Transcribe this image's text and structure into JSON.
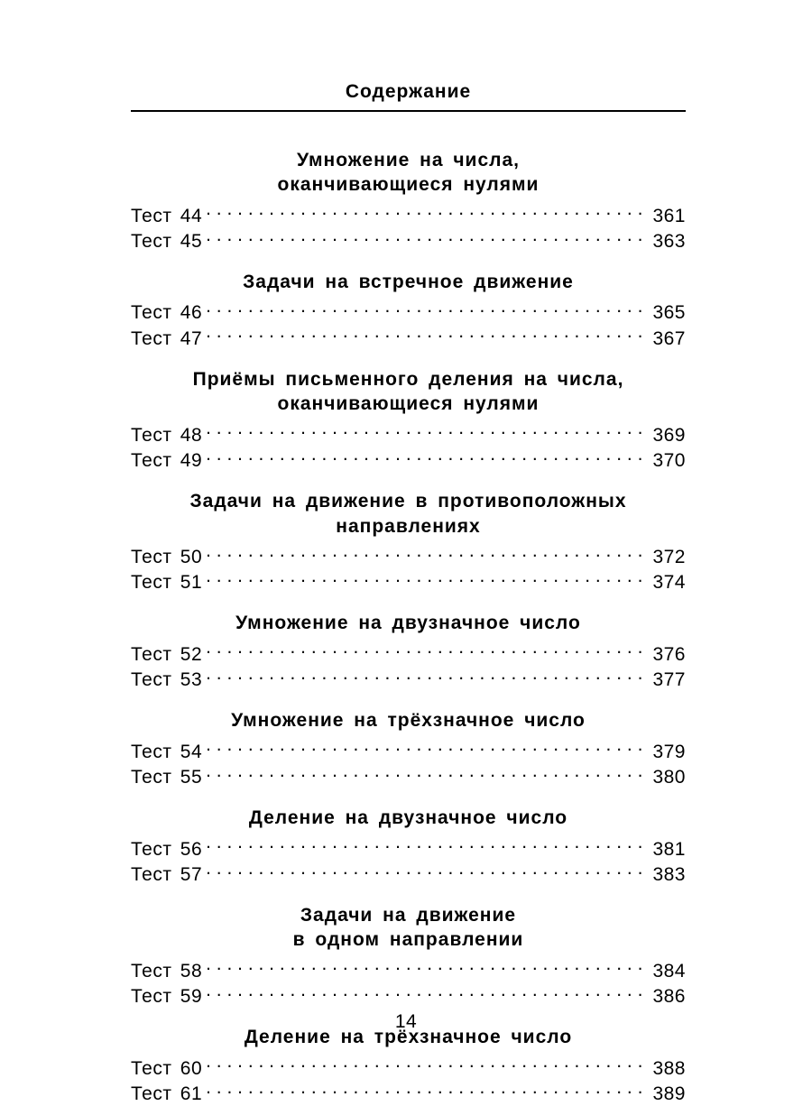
{
  "page_title": "Содержание",
  "page_number": "14",
  "test_prefix": "Тест",
  "sections": [
    {
      "heading": "Умножение на числа,<br>оканчивающиеся нулями",
      "entries": [
        {
          "num": "44",
          "page": "361"
        },
        {
          "num": "45",
          "page": "363"
        }
      ]
    },
    {
      "heading": "Задачи на встречное движение",
      "entries": [
        {
          "num": "46",
          "page": "365"
        },
        {
          "num": "47",
          "page": "367"
        }
      ]
    },
    {
      "heading": "Приёмы письменного деления на числа,<br>оканчивающиеся нулями",
      "entries": [
        {
          "num": "48",
          "page": "369"
        },
        {
          "num": "49",
          "page": "370"
        }
      ]
    },
    {
      "heading": "Задачи на движение в противоположных<br>направлениях",
      "entries": [
        {
          "num": "50",
          "page": "372"
        },
        {
          "num": "51",
          "page": "374"
        }
      ]
    },
    {
      "heading": "Умножение на двузначное число",
      "entries": [
        {
          "num": "52",
          "page": "376"
        },
        {
          "num": "53",
          "page": "377"
        }
      ]
    },
    {
      "heading": "Умножение на трёхзначное число",
      "entries": [
        {
          "num": "54",
          "page": "379"
        },
        {
          "num": "55",
          "page": "380"
        }
      ]
    },
    {
      "heading": "Деление на двузначное число",
      "entries": [
        {
          "num": "56",
          "page": "381"
        },
        {
          "num": "57",
          "page": "383"
        }
      ]
    },
    {
      "heading": "Задачи на движение<br>в одном направлении",
      "entries": [
        {
          "num": "58",
          "page": "384"
        },
        {
          "num": "59",
          "page": "386"
        }
      ]
    },
    {
      "heading": "Деление на трёхзначное число",
      "entries": [
        {
          "num": "60",
          "page": "388"
        },
        {
          "num": "61",
          "page": "389"
        }
      ]
    }
  ]
}
